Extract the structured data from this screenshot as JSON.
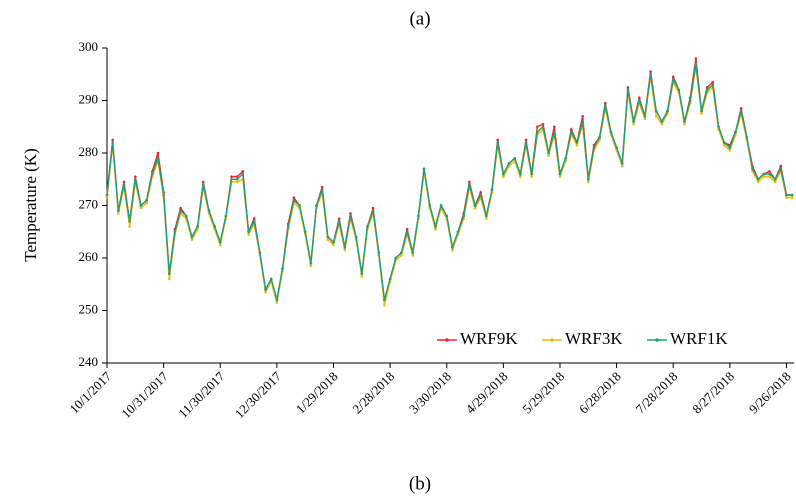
{
  "chart_data": {
    "type": "line",
    "title": "(a)",
    "caption": "(b)",
    "y_label": "Temperature (K)",
    "legend": "lower right",
    "x": [
      "10/1/2017",
      "10/4/2017",
      "10/7/2017",
      "10/10/2017",
      "10/13/2017",
      "10/16/2017",
      "10/19/2017",
      "10/22/2017",
      "10/25/2017",
      "10/28/2017",
      "10/31/2017",
      "11/3/2017",
      "11/6/2017",
      "11/9/2017",
      "11/12/2017",
      "11/15/2017",
      "11/18/2017",
      "11/21/2017",
      "11/24/2017",
      "11/27/2017",
      "11/30/2017",
      "12/3/2017",
      "12/6/2017",
      "12/9/2017",
      "12/12/2017",
      "12/15/2017",
      "12/18/2017",
      "12/21/2017",
      "12/24/2017",
      "12/27/2017",
      "12/30/2017",
      "1/2/2018",
      "1/5/2018",
      "1/8/2018",
      "1/11/2018",
      "1/14/2018",
      "1/17/2018",
      "1/20/2018",
      "1/23/2018",
      "1/26/2018",
      "1/29/2018",
      "2/1/2018",
      "2/4/2018",
      "2/7/2018",
      "2/10/2018",
      "2/13/2018",
      "2/16/2018",
      "2/19/2018",
      "2/22/2018",
      "2/25/2018",
      "2/28/2018",
      "3/3/2018",
      "3/6/2018",
      "3/9/2018",
      "3/12/2018",
      "3/15/2018",
      "3/18/2018",
      "3/21/2018",
      "3/24/2018",
      "3/27/2018",
      "3/30/2018",
      "4/2/2018",
      "4/5/2018",
      "4/8/2018",
      "4/11/2018",
      "4/14/2018",
      "4/17/2018",
      "4/20/2018",
      "4/23/2018",
      "4/26/2018",
      "4/29/2018",
      "5/2/2018",
      "5/5/2018",
      "5/8/2018",
      "5/11/2018",
      "5/14/2018",
      "5/17/2018",
      "5/20/2018",
      "5/23/2018",
      "5/26/2018",
      "5/29/2018",
      "6/1/2018",
      "6/4/2018",
      "6/7/2018",
      "6/10/2018",
      "6/13/2018",
      "6/16/2018",
      "6/19/2018",
      "6/22/2018",
      "6/25/2018",
      "6/28/2018",
      "7/1/2018",
      "7/4/2018",
      "7/7/2018",
      "7/10/2018",
      "7/13/2018",
      "7/16/2018",
      "7/19/2018",
      "7/22/2018",
      "7/25/2018",
      "7/28/2018",
      "7/31/2018",
      "8/3/2018",
      "8/6/2018",
      "8/9/2018",
      "8/12/2018",
      "8/15/2018",
      "8/18/2018",
      "8/21/2018",
      "8/24/2018",
      "8/27/2018",
      "8/30/2018",
      "9/2/2018",
      "9/5/2018",
      "9/8/2018",
      "9/11/2018",
      "9/14/2018",
      "9/17/2018",
      "9/20/2018",
      "9/23/2018",
      "9/26/2018",
      "9/29/2018"
    ],
    "series": [
      {
        "name": "WRF9K",
        "color": "#e8262b",
        "values": [
          272,
          282.5,
          269,
          274.5,
          267,
          275.5,
          270,
          271,
          276.5,
          280,
          272.5,
          257,
          265.5,
          269.5,
          268,
          264,
          266,
          274.5,
          269,
          266,
          263,
          268,
          275.5,
          275.5,
          276.5,
          265,
          267.5,
          261,
          254,
          256,
          252,
          258,
          266.5,
          271.5,
          270,
          265,
          259,
          270,
          273.5,
          264,
          263,
          267.5,
          262,
          268.5,
          264,
          257,
          266,
          269.5,
          261,
          252,
          256,
          260,
          261,
          265.5,
          261,
          268,
          277,
          270,
          266,
          270,
          268,
          262,
          265,
          268.5,
          274.5,
          270,
          272.5,
          268,
          273,
          282.5,
          276,
          278,
          279,
          276,
          282.5,
          276,
          285,
          285.5,
          280,
          285,
          276,
          279,
          284.5,
          282,
          287,
          275,
          281.5,
          283,
          289.5,
          284,
          281,
          278,
          292.5,
          286,
          290.5,
          287,
          295.5,
          288,
          286,
          288,
          294.5,
          292,
          286,
          290.5,
          298,
          288,
          292.5,
          293.5,
          285,
          282,
          281.5,
          284,
          288.5,
          283,
          277.5,
          275,
          276,
          276.5,
          275,
          277.5,
          272,
          272
        ]
      },
      {
        "name": "WRF3K",
        "color": "#f5b800",
        "values": [
          271.5,
          281.5,
          268.5,
          273.5,
          266,
          274.5,
          269.5,
          270.5,
          275.5,
          278.5,
          271.5,
          256,
          264.5,
          268.5,
          267.5,
          263.5,
          265.5,
          273.5,
          268.5,
          265.5,
          262.5,
          267.5,
          274.5,
          274.5,
          275,
          264.5,
          266.5,
          260.5,
          253.5,
          255.5,
          251.5,
          257.5,
          265.5,
          270.5,
          269.5,
          264.5,
          258.5,
          269.5,
          272.5,
          263.5,
          262.5,
          266.5,
          261.5,
          267.5,
          263.5,
          256.5,
          265.5,
          268.5,
          260.5,
          251,
          255.5,
          259.5,
          260.5,
          264.5,
          260.5,
          267.5,
          276.5,
          269.5,
          265.5,
          269.5,
          267.5,
          261.5,
          264.5,
          267.5,
          273.5,
          269.5,
          271.5,
          267.5,
          272.5,
          281.5,
          275.5,
          277.5,
          278.5,
          275.5,
          281.5,
          275.5,
          283.5,
          284.5,
          279.5,
          283.5,
          275.5,
          278.5,
          283.5,
          281.5,
          285.5,
          274.5,
          280.5,
          282.5,
          288.5,
          283.5,
          280.5,
          277.5,
          291.5,
          285.5,
          289.5,
          286.5,
          294.5,
          287,
          285.5,
          287.5,
          293.5,
          291.5,
          285.5,
          289.5,
          296.5,
          287.5,
          291.5,
          292.5,
          284.5,
          281.5,
          280.5,
          283.5,
          287.5,
          282.5,
          276.5,
          274.5,
          275.5,
          275.5,
          274.5,
          276.5,
          271.5,
          271.5
        ]
      },
      {
        "name": "WRF1K",
        "color": "#1aa37a",
        "values": [
          272,
          282,
          269,
          274,
          267,
          275,
          270,
          271,
          276,
          279,
          272,
          257,
          265,
          269,
          268,
          264,
          266,
          274,
          269,
          266,
          263,
          268,
          275,
          275,
          276,
          265,
          267,
          261,
          254,
          256,
          252,
          258,
          266,
          271,
          270,
          265,
          259,
          270,
          273,
          264,
          263,
          267,
          262,
          268,
          264,
          257,
          266,
          269,
          261,
          252,
          256,
          260,
          261,
          265,
          261,
          268,
          277,
          270,
          266,
          270,
          268,
          262,
          265,
          268,
          274,
          270,
          272,
          268,
          273,
          282,
          276,
          278,
          279,
          276,
          282,
          276,
          284,
          285,
          280,
          284,
          276,
          279,
          284,
          282,
          286,
          275,
          281,
          283,
          289,
          284,
          281,
          278,
          292,
          286,
          290,
          287,
          295,
          288,
          286,
          288,
          294,
          292,
          286,
          290,
          297,
          288,
          292,
          293,
          285,
          282,
          281,
          284,
          288,
          283,
          277,
          275,
          276,
          276,
          275,
          277,
          272,
          272
        ]
      }
    ],
    "xlim": [
      "10/1/2017",
      "9/30/2018"
    ],
    "xticks": [
      "10/1/2017",
      "10/31/2017",
      "11/30/2017",
      "12/30/2017",
      "1/29/2018",
      "2/28/2018",
      "3/30/2018",
      "4/29/2018",
      "5/29/2018",
      "6/28/2018",
      "7/28/2018",
      "8/27/2018",
      "9/26/2018"
    ],
    "ylim": [
      240,
      300
    ],
    "yticks": [
      240,
      250,
      260,
      270,
      280,
      290,
      300
    ]
  }
}
